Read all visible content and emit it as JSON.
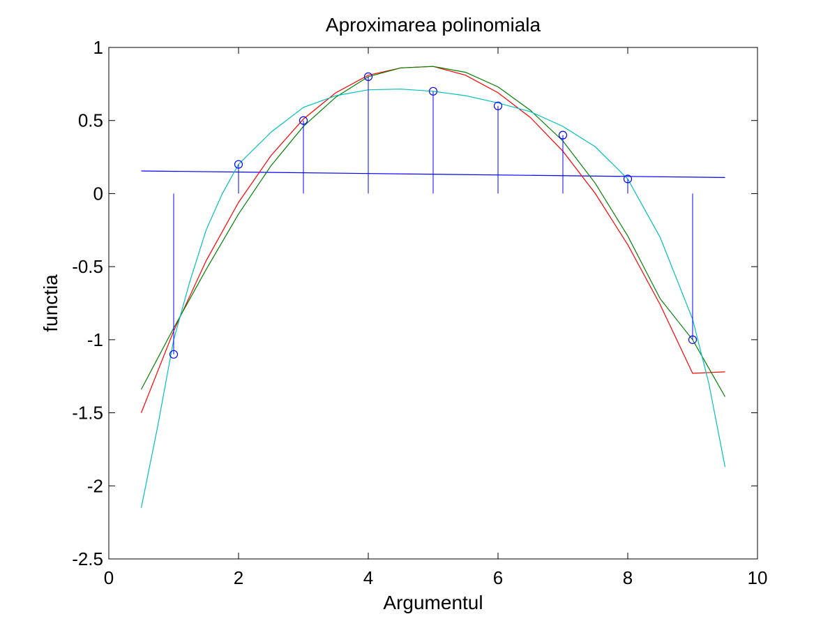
{
  "chart_data": {
    "type": "line",
    "title": "Aproximarea polinomiala",
    "xlabel": "Argumentul",
    "ylabel": "functia",
    "xlim": [
      0,
      10
    ],
    "ylim": [
      -2.5,
      1
    ],
    "xticks": [
      0,
      2,
      4,
      6,
      8,
      10
    ],
    "yticks": [
      -2.5,
      -2,
      -1.5,
      -1,
      -0.5,
      0,
      0.5,
      1
    ],
    "xtick_labels": [
      "0",
      "2",
      "4",
      "6",
      "8",
      "10"
    ],
    "ytick_labels": [
      "-2.5",
      "-2",
      "-1.5",
      "-1",
      "-0.5",
      "0",
      "0.5",
      "1"
    ],
    "grid": false,
    "stem": {
      "x": [
        1,
        2,
        3,
        4,
        5,
        6,
        7,
        8,
        9
      ],
      "y": [
        -1.1,
        0.2,
        0.5,
        0.8,
        0.7,
        0.6,
        0.4,
        0.1,
        -1.0
      ],
      "color": "#0000ff",
      "marker": "circle"
    },
    "series": [
      {
        "color": "#0000ff",
        "x": [
          0.5,
          9.5
        ],
        "y": [
          0.155,
          0.11
        ]
      },
      {
        "color": "#ff0000",
        "x": [
          0.5,
          1,
          1.5,
          2,
          2.5,
          3,
          3.5,
          4,
          4.5,
          5,
          5.5,
          6,
          6.5,
          7,
          7.5,
          8,
          8.5,
          9,
          9.5
        ],
        "y": [
          -1.5,
          -0.94,
          -0.46,
          -0.06,
          0.26,
          0.51,
          0.69,
          0.81,
          0.86,
          0.87,
          0.81,
          0.69,
          0.52,
          0.29,
          0.0,
          -0.35,
          -0.76,
          -1.23,
          -1.22
        ]
      },
      {
        "color": "#008000",
        "x": [
          0.5,
          1,
          1.5,
          2,
          2.5,
          3,
          3.5,
          4,
          4.5,
          5,
          5.5,
          6,
          6.5,
          7,
          7.5,
          8,
          8.5,
          9,
          9.5
        ],
        "y": [
          -1.34,
          -0.92,
          -0.52,
          -0.14,
          0.19,
          0.46,
          0.66,
          0.8,
          0.86,
          0.87,
          0.83,
          0.73,
          0.57,
          0.36,
          0.07,
          -0.29,
          -0.72,
          -1.0,
          -1.39
        ]
      },
      {
        "color": "#00bfbf",
        "x": [
          0.5,
          0.75,
          1,
          1.25,
          1.5,
          1.75,
          2,
          2.5,
          3,
          3.5,
          4,
          4.5,
          5,
          5.5,
          6,
          6.5,
          7,
          7.5,
          8,
          8.5,
          9,
          9.25,
          9.5
        ],
        "y": [
          -2.15,
          -1.6,
          -1.0,
          -0.6,
          -0.25,
          0.0,
          0.2,
          0.42,
          0.59,
          0.67,
          0.71,
          0.715,
          0.7,
          0.67,
          0.62,
          0.56,
          0.46,
          0.32,
          0.1,
          -0.3,
          -0.86,
          -1.3,
          -1.87
        ]
      }
    ]
  }
}
